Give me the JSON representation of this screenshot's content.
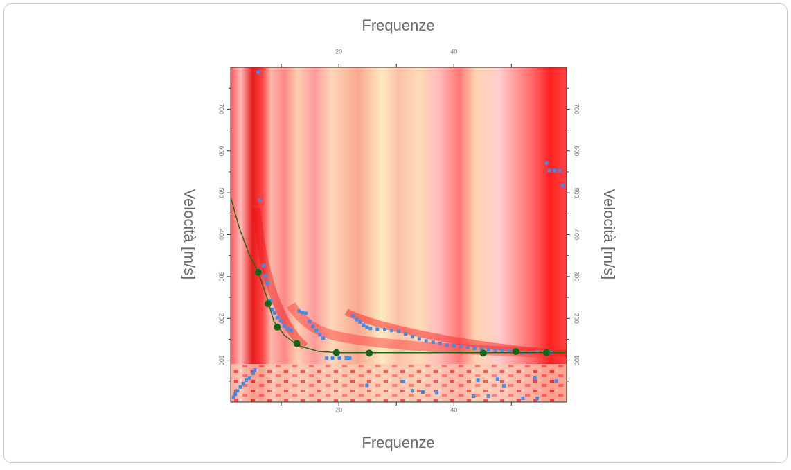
{
  "chart_data": {
    "type": "scatter",
    "x_label": "Frequenze",
    "y_label": "Velocità [m/s]",
    "xlim": [
      1.2,
      59.6
    ],
    "xticks": [
      20,
      40
    ],
    "xminorticks": [
      10,
      30,
      50
    ],
    "ylim": [
      0,
      800
    ],
    "yticks": [
      100,
      200,
      300,
      400,
      500,
      600,
      700
    ],
    "yminorticks": [
      50,
      150,
      250,
      350,
      450,
      550,
      650,
      750
    ],
    "series": [
      {
        "style": "points",
        "color": "#3b8ef0",
        "x": [
          1.7,
          2.0,
          2.4,
          2.9,
          3.4,
          3.9,
          4.5,
          5.1,
          5.4,
          6.0,
          6.3,
          6.9,
          7.2,
          7.6,
          8.1,
          8.4,
          8.8,
          9.3,
          9.9,
          10.5,
          11.1,
          11.7,
          13.1,
          13.7,
          14.3,
          14.9,
          15.5,
          16.1,
          16.7,
          17.3,
          17.9,
          18.9,
          20.1,
          21.3,
          21.9,
          22.5,
          23.1,
          23.7,
          24.3,
          24.9,
          25.5,
          26.7,
          28.0,
          29.2,
          30.4,
          31.6,
          32.8,
          34.0,
          35.2,
          36.4,
          37.6,
          38.8,
          40.0,
          41.2,
          42.4,
          43.6,
          44.8,
          46.0,
          47.2,
          48.4,
          49.6,
          52.0,
          53.3,
          54.5,
          55.7,
          56.9,
          56.1,
          56.6,
          57.5,
          58.4,
          58.9,
          24.9,
          31.2,
          32.8,
          34.6,
          37.0,
          44.2,
          43.4,
          46.0,
          47.6,
          48.7,
          52.0,
          54.1,
          54.5,
          57.8
        ],
        "values": [
          11,
          19,
          27,
          36,
          44,
          52,
          57,
          69,
          77,
          788,
          482,
          326,
          301,
          284,
          241,
          221,
          213,
          202,
          194,
          182,
          174,
          171,
          217,
          214,
          212,
          193,
          181,
          171,
          161,
          153,
          105,
          105,
          105,
          105,
          105,
          206,
          197,
          191,
          184,
          179,
          176,
          174,
          173,
          171,
          169,
          163,
          156,
          151,
          146,
          143,
          140,
          136,
          135,
          133,
          130,
          128,
          126,
          125,
          123,
          123,
          121,
          117,
          117,
          120,
          120,
          118,
          571,
          553,
          553,
          553,
          517,
          40,
          49,
          27,
          24,
          22,
          52,
          14,
          14,
          55,
          39,
          9,
          57,
          9,
          50
        ]
      },
      {
        "style": "line",
        "color": "#1f6b12",
        "x": [
          1.2,
          2.7,
          4.5,
          6.0,
          7.5,
          8.7,
          10.5,
          12.9,
          16.5,
          20.0,
          59.6
        ],
        "values": [
          490,
          416,
          350,
          310,
          250,
          193,
          160,
          135,
          121,
          118,
          118
        ]
      },
      {
        "style": "points",
        "color": "#14661a",
        "size": 5,
        "x": [
          6.0,
          7.7,
          9.3,
          12.7,
          19.6,
          25.3,
          45.1,
          50.8,
          56.1
        ],
        "values": [
          310,
          235,
          179,
          140,
          118,
          117,
          117,
          121,
          118
        ]
      }
    ]
  }
}
